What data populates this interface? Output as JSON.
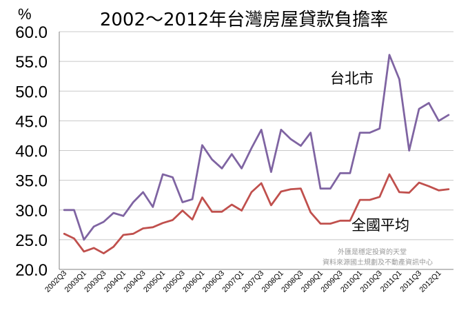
{
  "chart_data": {
    "type": "line",
    "title": "2002～2012年台灣房屋貸款負擔率",
    "ylabel": "%",
    "xlabel": "",
    "ylim": [
      20.0,
      60.0
    ],
    "yticks": [
      "60.0",
      "55.0",
      "50.0",
      "45.0",
      "40.0",
      "35.0",
      "30.0",
      "25.0",
      "20.0"
    ],
    "grid": true,
    "categories": [
      "2002Q3",
      "2002Q4",
      "2003Q1",
      "2003Q2",
      "2003Q3",
      "2003Q4",
      "2004Q1",
      "2004Q2",
      "2004Q3",
      "2004Q4",
      "2005Q1",
      "2005Q2",
      "2005Q3",
      "2005Q4",
      "2006Q1",
      "2006Q2",
      "2006Q3",
      "2006Q4",
      "2007Q1",
      "2007Q2",
      "2007Q3",
      "2007Q4",
      "2008Q1",
      "2008Q2",
      "2008Q3",
      "2008Q4",
      "2009Q1",
      "2009Q2",
      "2009Q3",
      "2009Q4",
      "2010Q1",
      "2010Q2",
      "2010Q3",
      "2010Q4",
      "2011Q1",
      "2011Q2",
      "2011Q3",
      "2011Q4",
      "2012Q1",
      "2012Q2"
    ],
    "xtick_labels": [
      "2002Q3",
      "2003Q1",
      "2003Q3",
      "2004Q1",
      "2004Q3",
      "2005Q1",
      "2005Q3",
      "2006Q1",
      "2006Q3",
      "2007Q1",
      "2007Q3",
      "2008Q1",
      "2008Q3",
      "2009Q1",
      "2009Q3",
      "2010Q1",
      "2010Q3",
      "2011Q1",
      "2011Q3",
      "2012Q1"
    ],
    "series": [
      {
        "name": "台北市",
        "color": "#7f64a2",
        "values": [
          30.0,
          30.0,
          25.0,
          27.2,
          28.0,
          29.5,
          29.0,
          31.3,
          33.0,
          30.5,
          36.0,
          35.5,
          31.3,
          31.8,
          40.9,
          38.5,
          37.0,
          39.4,
          37.0,
          40.4,
          43.5,
          36.4,
          43.5,
          41.9,
          40.8,
          43.0,
          33.6,
          33.6,
          36.2,
          36.2,
          43.0,
          43.0,
          43.7,
          56.1,
          52.0,
          40.0,
          47.0,
          48.0,
          45.0,
          46.0
        ]
      },
      {
        "name": "全國平均",
        "color": "#c0504d",
        "values": [
          26.0,
          25.2,
          23.0,
          23.6,
          22.7,
          23.8,
          25.8,
          26.0,
          26.9,
          27.1,
          27.8,
          28.3,
          29.9,
          28.4,
          32.1,
          29.7,
          29.7,
          30.9,
          29.9,
          33.0,
          34.5,
          30.8,
          33.1,
          33.5,
          33.6,
          29.6,
          27.7,
          27.7,
          28.2,
          28.2,
          31.7,
          31.7,
          32.2,
          36.0,
          33.0,
          32.9,
          34.6,
          34.0,
          33.3,
          33.5
        ]
      }
    ],
    "watermark": [
      "外匯是穩定投資的天堂",
      "資料來源國土規劃及不動產資訊中心"
    ]
  }
}
